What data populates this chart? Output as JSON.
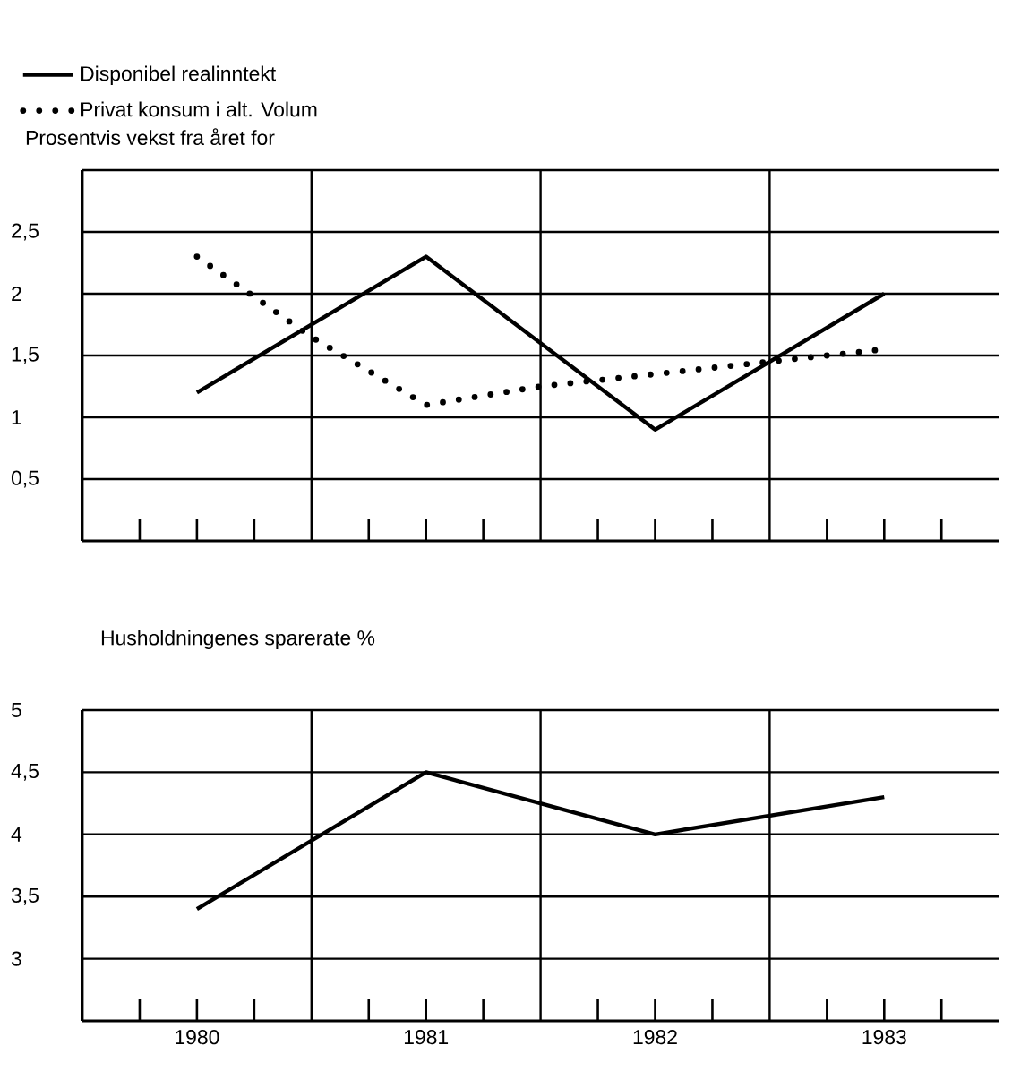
{
  "chart_data": [
    {
      "type": "line",
      "title": "Prosentvis vekst fra året for",
      "series": [
        {
          "name": "Disponibel realinntekt",
          "color": "#000000",
          "line_style": "solid",
          "x": [
            1980.5,
            1981.5,
            1982.5,
            1983.5
          ],
          "values": [
            1.2,
            2.3,
            0.9,
            2.0
          ]
        },
        {
          "name": "Privat konsum i alt. Volum",
          "color": "#000000",
          "line_style": "dotted",
          "x": [
            1980.5,
            1981.0,
            1981.5,
            1982.0,
            1982.5,
            1983.0,
            1983.5
          ],
          "values": [
            2.3,
            1.65,
            1.1,
            1.25,
            1.35,
            1.45,
            1.55
          ]
        }
      ],
      "xlim": [
        1980,
        1984
      ],
      "ylim": [
        0,
        3
      ],
      "xticks": [
        {
          "value": 1980.25,
          "label": null
        },
        {
          "value": 1980.5,
          "label": null
        },
        {
          "value": 1980.75,
          "label": null
        },
        {
          "value": 1981.25,
          "label": null
        },
        {
          "value": 1981.5,
          "label": null
        },
        {
          "value": 1981.75,
          "label": null
        },
        {
          "value": 1982.25,
          "label": null
        },
        {
          "value": 1982.5,
          "label": null
        },
        {
          "value": 1982.75,
          "label": null
        },
        {
          "value": 1983.25,
          "label": null
        },
        {
          "value": 1983.5,
          "label": null
        },
        {
          "value": 1983.75,
          "label": null
        }
      ],
      "yticks": [
        {
          "value": 0.5,
          "label": "0,5"
        },
        1,
        {
          "value": 1.5,
          "label": "1,5"
        },
        2,
        {
          "value": 2.5,
          "label": "2,5"
        },
        {
          "value": 3,
          "label": null
        }
      ],
      "grid": "y",
      "tick_labels": "y",
      "legend": "top left",
      "ref_lines": [
        {
          "axis": "x",
          "value": 1981
        },
        {
          "axis": "x",
          "value": 1982
        },
        {
          "axis": "x",
          "value": 1983
        }
      ]
    },
    {
      "type": "line",
      "title": "Husholdningenes sparerate  %",
      "series": [
        {
          "color": "#000000",
          "line_style": "solid",
          "x": [
            1980.5,
            1981.5,
            1982.5,
            1983.5
          ],
          "values": [
            3.4,
            4.5,
            4.0,
            4.3
          ]
        }
      ],
      "xlim": [
        1980,
        1984
      ],
      "ylim": [
        2.5,
        5
      ],
      "xticks": [
        {
          "value": 1980.25,
          "label": null
        },
        {
          "value": 1980.5,
          "label": "1980"
        },
        {
          "value": 1980.75,
          "label": null
        },
        {
          "value": 1981.25,
          "label": null
        },
        {
          "value": 1981.5,
          "label": "1981"
        },
        {
          "value": 1981.75,
          "label": null
        },
        {
          "value": 1982.25,
          "label": null
        },
        {
          "value": 1982.5,
          "label": "1982"
        },
        {
          "value": 1982.75,
          "label": null
        },
        {
          "value": 1983.25,
          "label": null
        },
        {
          "value": 1983.5,
          "label": "1983"
        },
        {
          "value": 1983.75,
          "label": null
        }
      ],
      "yticks": [
        3,
        {
          "value": 3.5,
          "label": "3,5"
        },
        4,
        {
          "value": 4.5,
          "label": "4,5"
        },
        5
      ],
      "grid": "y",
      "ref_lines": [
        {
          "axis": "x",
          "value": 1981
        },
        {
          "axis": "x",
          "value": 1982
        },
        {
          "axis": "x",
          "value": 1983
        }
      ]
    }
  ]
}
